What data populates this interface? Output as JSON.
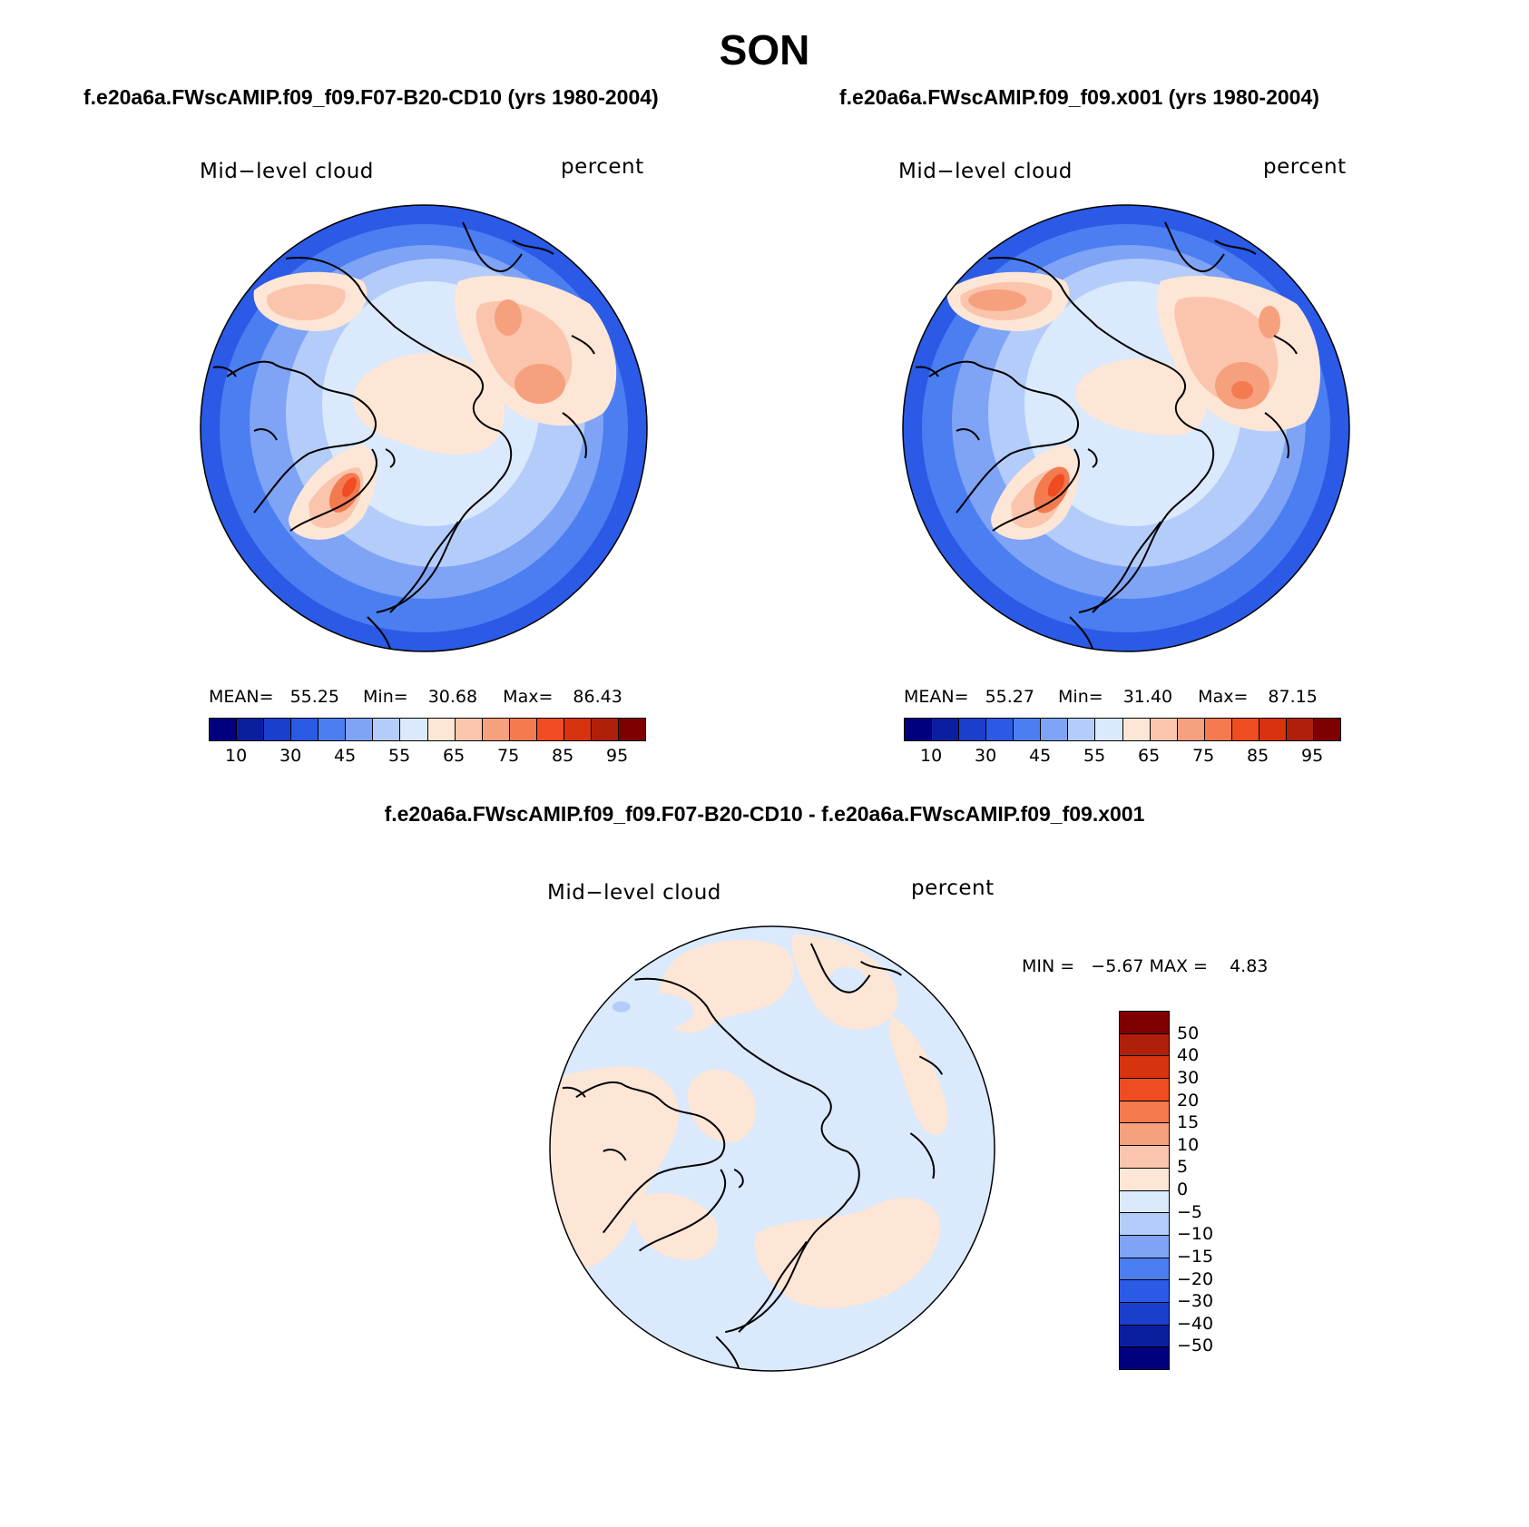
{
  "title": "SON",
  "panels": [
    {
      "case": "f.e20a6a.FWscAMIP.f09_f09.F07-B20-CD10 (yrs 1980-2004)",
      "variable": "Mid−level cloud",
      "units": "percent",
      "mean_label": "MEAN=",
      "mean_value": "55.25",
      "min_label": "Min=",
      "min_value": "30.68",
      "max_label": "Max=",
      "max_value": "86.43"
    },
    {
      "case": "f.e20a6a.FWscAMIP.f09_f09.x001 (yrs 1980-2004)",
      "variable": "Mid−level cloud",
      "units": "percent",
      "mean_label": "MEAN=",
      "mean_value": "55.27",
      "min_label": "Min=",
      "min_value": "31.40",
      "max_label": "Max=",
      "max_value": "87.15"
    }
  ],
  "diff": {
    "title": "f.e20a6a.FWscAMIP.f09_f09.F07-B20-CD10 - f.e20a6a.FWscAMIP.f09_f09.x001",
    "variable": "Mid−level cloud",
    "units": "percent",
    "minmax": "MIN =   −5.67 MAX =    4.83"
  },
  "colorbar_abs": {
    "colors": [
      "#00007f",
      "#0a1ea0",
      "#1a3fcc",
      "#2a5ae6",
      "#4b7ef0",
      "#7fa3f5",
      "#b4ccfa",
      "#dae9fc",
      "#fde6d6",
      "#fbc5ad",
      "#f7a07e",
      "#f47a50",
      "#ef4c22",
      "#d8330f",
      "#b01f0a",
      "#7f0000"
    ],
    "labels": [
      "10",
      "30",
      "45",
      "55",
      "65",
      "75",
      "85",
      "95"
    ]
  },
  "colorbar_diff": {
    "colors": [
      "#00007f",
      "#0a1ea0",
      "#1a3fcc",
      "#2a5ae6",
      "#4b7ef0",
      "#7fa3f5",
      "#b4ccfa",
      "#dae9fc",
      "#fde6d6",
      "#fbc5ad",
      "#f7a07e",
      "#f47a50",
      "#ef4c22",
      "#d8330f",
      "#b01f0a",
      "#7f0000"
    ],
    "labels": [
      "−50",
      "−40",
      "−30",
      "−20",
      "−15",
      "−10",
      "−5",
      "0",
      "5",
      "10",
      "15",
      "20",
      "30",
      "40",
      "50"
    ]
  }
}
